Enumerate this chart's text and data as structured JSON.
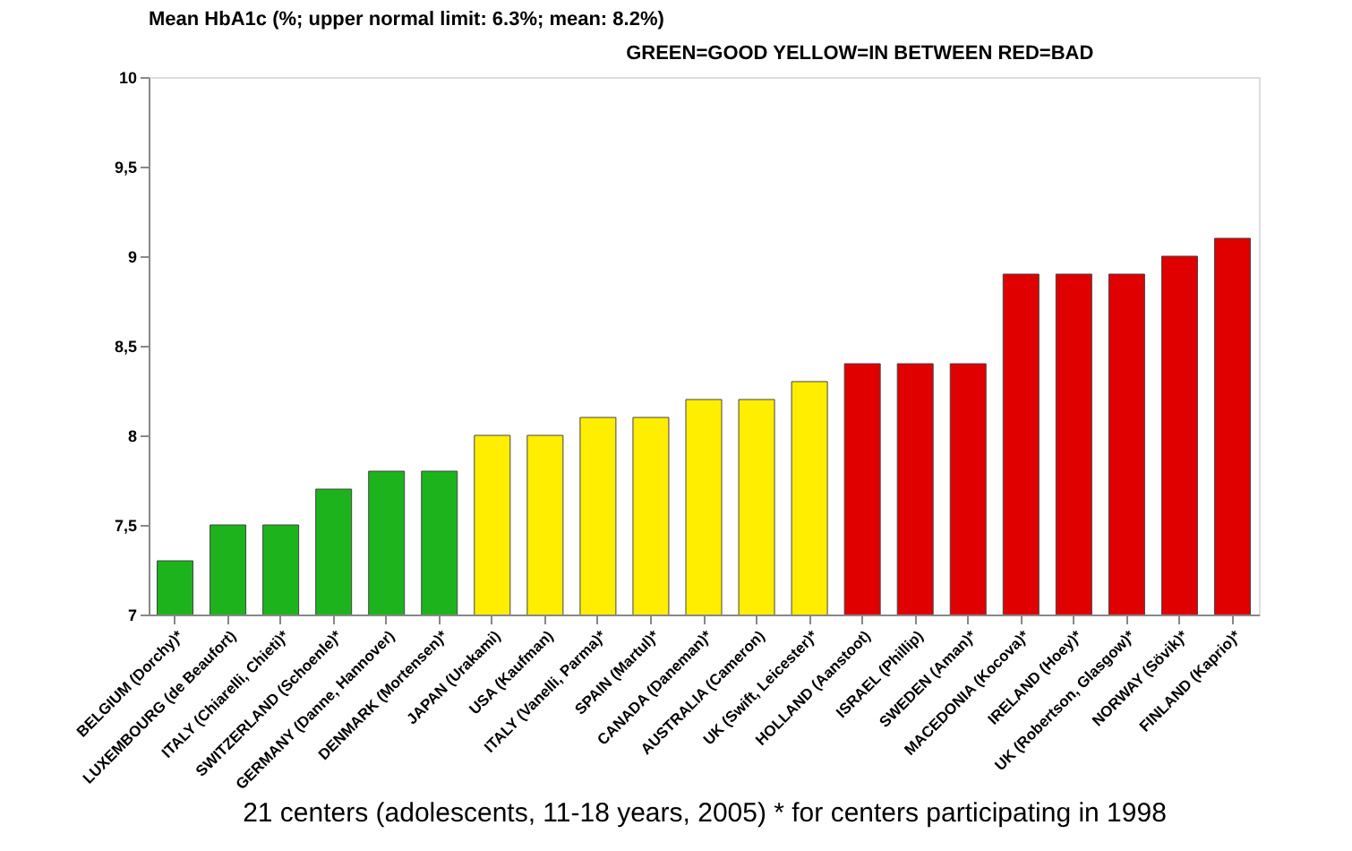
{
  "chart_data": {
    "type": "bar",
    "title": "Mean HbA1c (%; upper normal limit: 6.3%; mean: 8.2%)",
    "xlabel": "21 centers (adolescents, 11-18 years, 2005) * for centers participating in 1998",
    "annotations": [
      "GREEN=GOOD    YELLOW=IN BETWEEN    RED=BAD"
    ],
    "categories": [
      "BELGIUM (Dorchy)*",
      "LUXEMBOURG (de Beaufort)",
      "ITALY (Chiarelli, Chieti)*",
      "SWITZERLAND (Schoenle)*",
      "GERMANY (Danne, Hannover)",
      "DENMARK (Mortensen)*",
      "JAPAN (Urakami)",
      "USA (Kaufman)",
      "ITALY (Vanelli, Parma)*",
      "SPAIN (Martul)*",
      "CANADA (Daneman)*",
      "AUSTRALIA (Cameron)",
      "UK (Swift, Leicester)*",
      "HOLLAND (Aanstoot)",
      "ISRAEL (Phillip)",
      "SWEDEN (Aman)*",
      "MACEDONIA (Kocova)*",
      "IRELAND (Hoey)*",
      "UK (Robertson, Glasgow)*",
      "NORWAY (Sövik)*",
      "FINLAND (Kaprio)*"
    ],
    "values": [
      7.3,
      7.5,
      7.5,
      7.7,
      7.8,
      7.8,
      8.0,
      8.0,
      8.1,
      8.1,
      8.2,
      8.2,
      8.3,
      8.4,
      8.4,
      8.4,
      8.9,
      8.9,
      8.9,
      9.0,
      9.1
    ],
    "colors": [
      "#1db31d",
      "#1db31d",
      "#1db31d",
      "#1db31d",
      "#1db31d",
      "#1db31d",
      "#ffee00",
      "#ffee00",
      "#ffee00",
      "#ffee00",
      "#ffee00",
      "#ffee00",
      "#ffee00",
      "#e00000",
      "#e00000",
      "#e00000",
      "#e00000",
      "#e00000",
      "#e00000",
      "#e00000",
      "#e00000"
    ],
    "ylim": [
      7,
      10
    ],
    "yticks": [
      7,
      {
        "value": 7.5,
        "label": "7,5"
      },
      8,
      {
        "value": 8.5,
        "label": "8,5"
      },
      9,
      {
        "value": 9.5,
        "label": "9,5"
      },
      10
    ],
    "grid": false
  }
}
